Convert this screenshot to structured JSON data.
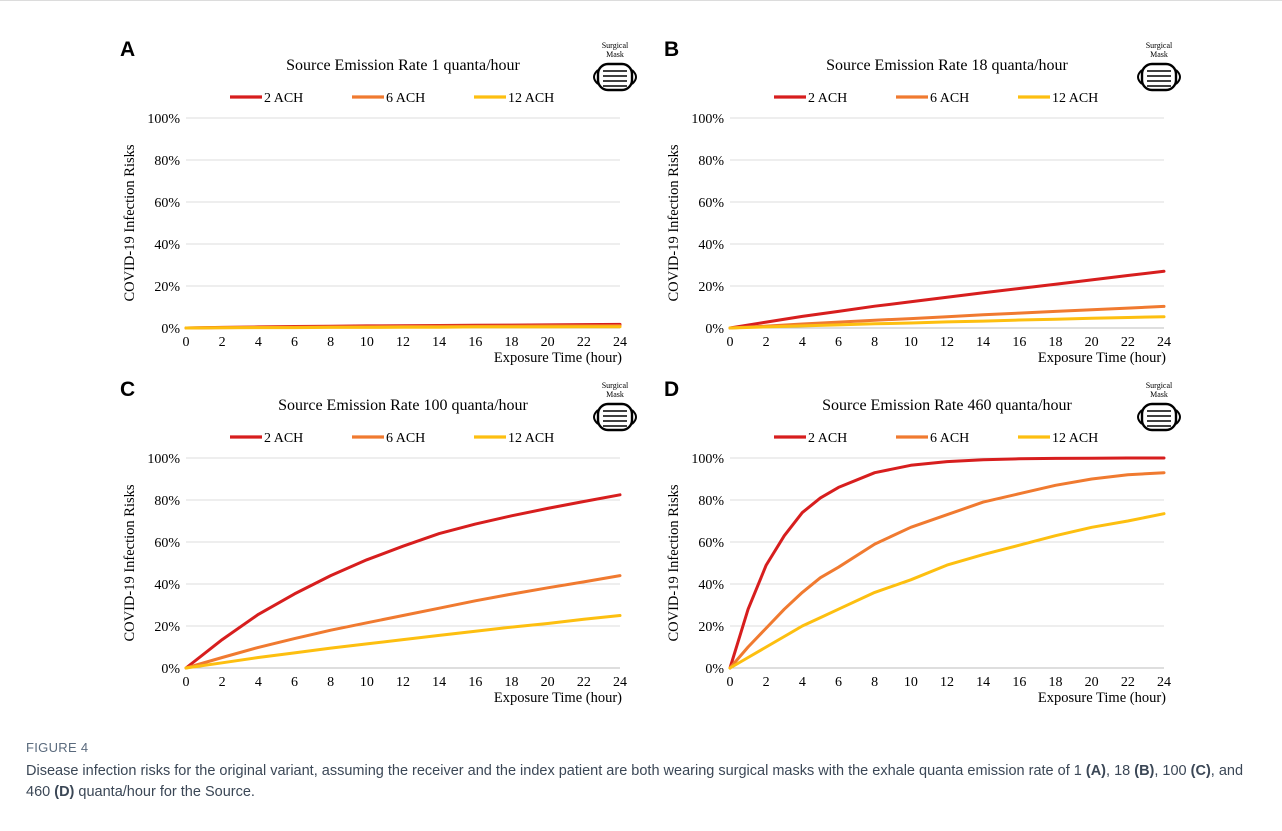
{
  "legend_labels": [
    "2 ACH",
    "6 ACH",
    "12 ACH"
  ],
  "colors": {
    "2 ACH": "#d71e1e",
    "6 ACH": "#f07a30",
    "12 ACH": "#fdbf10"
  },
  "mask_label": "Surgical Mask",
  "mask_icon": "surgical-mask-icon",
  "chart_data": [
    {
      "type": "line",
      "panel": "A",
      "title": "Source Emission Rate 1 quanta/hour",
      "xlabel": "Exposure Time (hour)",
      "ylabel": "COVID-19 Infection Risks",
      "xlim": [
        0,
        24
      ],
      "ylim": [
        0,
        100
      ],
      "xticks": [
        0,
        2,
        4,
        6,
        8,
        10,
        12,
        14,
        16,
        18,
        20,
        22,
        24
      ],
      "yticks": [
        0,
        20,
        40,
        60,
        80,
        100
      ],
      "grid": "horizontal",
      "legend": "top",
      "x": [
        0,
        2,
        4,
        6,
        8,
        10,
        12,
        14,
        16,
        18,
        20,
        22,
        24
      ],
      "series": [
        {
          "name": "2 ACH",
          "values": [
            0,
            0.3,
            0.5,
            0.7,
            0.8,
            1.0,
            1.1,
            1.2,
            1.3,
            1.4,
            1.5,
            1.6,
            1.7
          ]
        },
        {
          "name": "6 ACH",
          "values": [
            0,
            0.2,
            0.3,
            0.4,
            0.5,
            0.6,
            0.7,
            0.8,
            0.8,
            0.9,
            1.0,
            1.0,
            1.1
          ]
        },
        {
          "name": "12 ACH",
          "values": [
            0,
            0.1,
            0.2,
            0.2,
            0.3,
            0.3,
            0.4,
            0.4,
            0.5,
            0.5,
            0.5,
            0.6,
            0.6
          ]
        }
      ]
    },
    {
      "type": "line",
      "panel": "B",
      "title": "Source Emission Rate 18 quanta/hour",
      "xlabel": "Exposure Time (hour)",
      "ylabel": "COVID-19 Infection Risks",
      "xlim": [
        0,
        24
      ],
      "ylim": [
        0,
        100
      ],
      "xticks": [
        0,
        2,
        4,
        6,
        8,
        10,
        12,
        14,
        16,
        18,
        20,
        22,
        24
      ],
      "yticks": [
        0,
        20,
        40,
        60,
        80,
        100
      ],
      "grid": "horizontal",
      "legend": "top",
      "x": [
        0,
        2,
        4,
        6,
        8,
        10,
        12,
        14,
        16,
        18,
        20,
        22,
        24
      ],
      "series": [
        {
          "name": "2 ACH",
          "values": [
            0,
            2.8,
            5.5,
            7.9,
            10.4,
            12.5,
            14.6,
            16.8,
            18.8,
            20.8,
            22.9,
            25.0,
            27.0
          ]
        },
        {
          "name": "6 ACH",
          "values": [
            0,
            0.9,
            1.9,
            2.8,
            3.7,
            4.5,
            5.4,
            6.3,
            7.1,
            7.9,
            8.7,
            9.5,
            10.3
          ]
        },
        {
          "name": "12 ACH",
          "values": [
            0,
            0.5,
            1.0,
            1.5,
            2.0,
            2.4,
            2.9,
            3.3,
            3.8,
            4.2,
            4.6,
            5.0,
            5.4
          ]
        }
      ]
    },
    {
      "type": "line",
      "panel": "C",
      "title": "Source Emission Rate 100 quanta/hour",
      "xlabel": "Exposure Time (hour)",
      "ylabel": "COVID-19 Infection Risks",
      "xlim": [
        0,
        24
      ],
      "ylim": [
        0,
        100
      ],
      "xticks": [
        0,
        2,
        4,
        6,
        8,
        10,
        12,
        14,
        16,
        18,
        20,
        22,
        24
      ],
      "yticks": [
        0,
        20,
        40,
        60,
        80,
        100
      ],
      "grid": "horizontal",
      "legend": "top",
      "x": [
        0,
        2,
        4,
        6,
        8,
        10,
        12,
        14,
        16,
        18,
        20,
        22,
        24
      ],
      "series": [
        {
          "name": "2 ACH",
          "values": [
            0,
            13.5,
            25.5,
            35.3,
            44.0,
            51.5,
            58.0,
            64.0,
            68.5,
            72.5,
            76.0,
            79.3,
            82.5
          ]
        },
        {
          "name": "6 ACH",
          "values": [
            0,
            5.0,
            9.8,
            14.0,
            18.0,
            21.5,
            25.0,
            28.5,
            32.0,
            35.2,
            38.2,
            41.0,
            44.0
          ]
        },
        {
          "name": "12 ACH",
          "values": [
            0,
            2.5,
            5.0,
            7.2,
            9.5,
            11.5,
            13.5,
            15.5,
            17.5,
            19.5,
            21.2,
            23.2,
            25.0
          ]
        }
      ]
    },
    {
      "type": "line",
      "panel": "D",
      "title": "Source Emission Rate 460 quanta/hour",
      "xlabel": "Exposure Time (hour)",
      "ylabel": "COVID-19 Infection Risks",
      "xlim": [
        0,
        24
      ],
      "ylim": [
        0,
        100
      ],
      "xticks": [
        0,
        2,
        4,
        6,
        8,
        10,
        12,
        14,
        16,
        18,
        20,
        22,
        24
      ],
      "yticks": [
        0,
        20,
        40,
        60,
        80,
        100
      ],
      "grid": "horizontal",
      "legend": "top",
      "x": [
        0,
        1,
        2,
        3,
        4,
        5,
        6,
        8,
        10,
        12,
        14,
        16,
        18,
        20,
        22,
        24
      ],
      "series": [
        {
          "name": "2 ACH",
          "values": [
            0,
            28,
            49,
            63,
            74,
            81,
            86,
            93,
            96.5,
            98.3,
            99.2,
            99.6,
            99.8,
            99.9,
            100,
            100
          ]
        },
        {
          "name": "6 ACH",
          "values": [
            0,
            10,
            19,
            28,
            36,
            43,
            48,
            59,
            67,
            73,
            79,
            83,
            87,
            90,
            92,
            93
          ]
        },
        {
          "name": "12 ACH",
          "values": [
            0,
            5,
            10,
            15,
            20,
            24,
            28,
            36,
            42,
            49,
            54,
            58.5,
            63,
            67,
            70,
            73.5
          ]
        }
      ]
    }
  ],
  "caption": {
    "label": "FIGURE 4",
    "text_1": "Disease infection risks for the original variant, assuming the receiver and the index patient are both wearing surgical masks with the exhale quanta emission rate of 1 ",
    "ref_a": "(A)",
    "text_2": ", 18 ",
    "ref_b": "(B)",
    "text_3": ", 100 ",
    "ref_c": "(C)",
    "text_4": ", and 460 ",
    "ref_d": "(D)",
    "text_5": " quanta/hour for the Source."
  }
}
